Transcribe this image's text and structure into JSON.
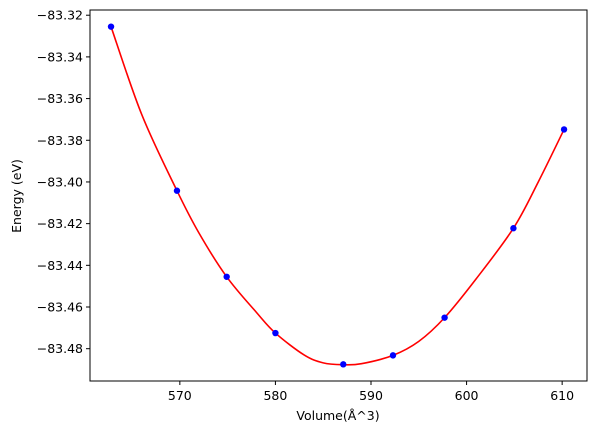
{
  "chart_data": {
    "type": "scatter",
    "xlabel": "Volume(Å^3)",
    "ylabel": "Energy (eV)",
    "xlim": [
      560.6,
      612.6
    ],
    "ylim": [
      -83.4955,
      -83.3175
    ],
    "xticks": [
      570,
      580,
      590,
      600,
      610
    ],
    "yticks": [
      -83.32,
      -83.34,
      -83.36,
      -83.38,
      -83.4,
      -83.42,
      -83.44,
      -83.46,
      -83.48
    ],
    "grid": false,
    "points": {
      "name": "",
      "color": "#0000ff",
      "x": [
        562.8,
        569.7,
        574.9,
        580.0,
        587.1,
        592.3,
        597.7,
        604.9,
        610.2
      ],
      "y": [
        -83.3255,
        -83.4042,
        -83.4455,
        -83.4725,
        -83.4875,
        -83.4832,
        -83.4651,
        -83.4222,
        -83.3748
      ]
    },
    "fit": {
      "name": "",
      "color": "#ff0000",
      "type": "curve",
      "x": [
        562.8,
        566.0,
        569.7,
        572.0,
        574.9,
        578.0,
        580.0,
        583.0,
        585.0,
        587.1,
        589.0,
        592.3,
        595.0,
        597.7,
        601.0,
        604.9,
        607.5,
        610.2
      ],
      "y": [
        -83.3255,
        -83.3675,
        -83.4042,
        -83.4245,
        -83.4455,
        -83.4625,
        -83.4725,
        -83.483,
        -83.4868,
        -83.4877,
        -83.4872,
        -83.4832,
        -83.4765,
        -83.4651,
        -83.4465,
        -83.4222,
        -83.4,
        -83.3748
      ]
    }
  }
}
